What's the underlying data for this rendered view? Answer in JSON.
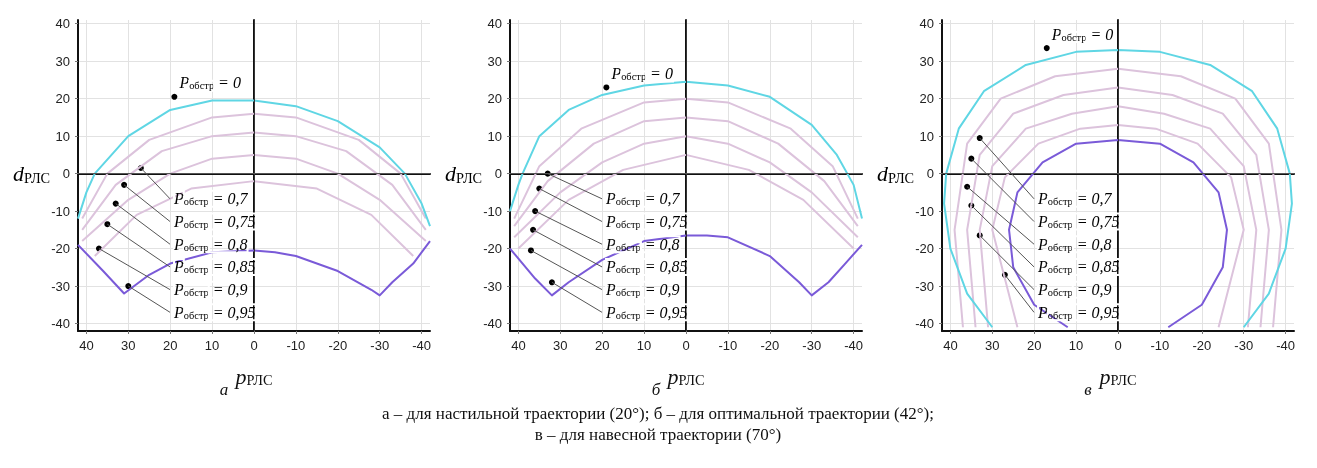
{
  "chart_data": [
    {
      "type": "line",
      "title": "а",
      "xlabel": "p$_{РЛС}$",
      "ylabel": "d$_{РЛС}$",
      "xlim": [
        42,
        -42
      ],
      "ylim": [
        -42,
        41
      ],
      "xticks": [
        40,
        30,
        20,
        10,
        0,
        -10,
        -20,
        -30,
        -40
      ],
      "yticks": [
        -40,
        -30,
        -20,
        -10,
        0,
        10,
        20,
        30,
        40
      ],
      "grid": true,
      "marker": "none",
      "line_style": "solid",
      "ref_lines": [
        {
          "axis": "x",
          "value": 0,
          "color": "#333333"
        },
        {
          "axis": "y",
          "value": 0,
          "color": "#555555"
        }
      ],
      "series": [
        {
          "color": "#dcc3dc",
          "x": [
            41,
            35,
            25,
            10,
            0,
            -10,
            -25,
            -35,
            -41
          ],
          "values": [
            -12,
            0,
            9,
            15,
            16,
            15,
            9,
            0,
            -12
          ]
        },
        {
          "color": "#dcc3dc",
          "x": [
            41,
            33,
            22,
            10,
            0,
            -10,
            -22,
            -33,
            -41
          ],
          "values": [
            -15,
            -3,
            6,
            10,
            11,
            10,
            6,
            -3,
            -15
          ]
        },
        {
          "color": "#dcc3dc",
          "x": [
            41,
            30,
            20,
            10,
            0,
            -10,
            -20,
            -30,
            -41
          ],
          "values": [
            -18,
            -7,
            0,
            4,
            5,
            4,
            0,
            -7,
            -18
          ]
        },
        {
          "color": "#dcc3dc",
          "x": [
            38,
            28,
            15,
            0,
            -15,
            -28,
            -38
          ],
          "values": [
            -22,
            -11,
            -4,
            -2,
            -4,
            -11,
            -22
          ]
        },
        {
          "color": "#5fd6e4",
          "x": [
            42,
            40,
            38,
            30,
            20,
            10,
            0,
            -10,
            -20,
            -30,
            -36,
            -40,
            -42
          ],
          "values": [
            -12,
            -5,
            0,
            10,
            17,
            19.5,
            19.5,
            18,
            14,
            7,
            0,
            -8,
            -14
          ]
        },
        {
          "color": "#7a5ad8",
          "x": [
            42,
            36,
            31,
            25,
            20,
            10,
            0,
            -5,
            -10,
            -20,
            -28,
            -30,
            -33,
            -38,
            -42
          ],
          "values": [
            -19,
            -26,
            -32,
            -27,
            -24,
            -21,
            -20.5,
            -21,
            -22,
            -26,
            -31,
            -32.5,
            -29,
            -24,
            -18
          ]
        }
      ],
      "annotations": [
        {
          "text": "P$_{обстр}$ = 0",
          "x": 19,
          "y": 20.5
        },
        {
          "text": "P$_{обстр}$ = 0,7",
          "x": 27,
          "y": 1.5
        },
        {
          "text": "P$_{обстр}$ = 0,75",
          "x": 31,
          "y": -3
        },
        {
          "text": "P$_{обстр}$ = 0,8",
          "x": 33,
          "y": -8
        },
        {
          "text": "P$_{обстр}$ = 0,85",
          "x": 35,
          "y": -13.5
        },
        {
          "text": "P$_{обстр}$ = 0,9",
          "x": 37,
          "y": -20
        },
        {
          "text": "P$_{обстр}$ = 0,95",
          "x": 30,
          "y": -30
        }
      ]
    },
    {
      "type": "line",
      "title": "б",
      "xlabel": "p$_{РЛС}$",
      "ylabel": "d$_{РЛС}$",
      "xlim": [
        42,
        -42
      ],
      "ylim": [
        -42,
        41
      ],
      "xticks": [
        40,
        30,
        20,
        10,
        0,
        -10,
        -20,
        -30,
        -40
      ],
      "yticks": [
        -40,
        -30,
        -20,
        -10,
        0,
        10,
        20,
        30,
        40
      ],
      "grid": true,
      "marker": "none",
      "line_style": "solid",
      "ref_lines": [
        {
          "axis": "x",
          "value": 0,
          "color": "#333333"
        },
        {
          "axis": "y",
          "value": 0,
          "color": "#555555"
        }
      ],
      "series": [
        {
          "color": "#dcc3dc",
          "x": [
            41,
            35,
            25,
            10,
            0,
            -10,
            -25,
            -35,
            -41
          ],
          "values": [
            -12,
            2,
            12,
            19,
            20,
            19,
            12,
            2,
            -12
          ]
        },
        {
          "color": "#dcc3dc",
          "x": [
            41,
            33,
            22,
            10,
            0,
            -10,
            -22,
            -33,
            -41
          ],
          "values": [
            -14,
            -2,
            8,
            14,
            15,
            14,
            8,
            -2,
            -14
          ]
        },
        {
          "color": "#dcc3dc",
          "x": [
            41,
            30,
            20,
            10,
            0,
            -10,
            -20,
            -30,
            -41
          ],
          "values": [
            -17,
            -5,
            3,
            8,
            10,
            8,
            3,
            -5,
            -17
          ]
        },
        {
          "color": "#dcc3dc",
          "x": [
            40,
            28,
            15,
            0,
            -15,
            -28,
            -40
          ],
          "values": [
            -20,
            -7,
            1,
            5,
            1,
            -7,
            -20
          ]
        },
        {
          "color": "#5fd6e4",
          "x": [
            42,
            40,
            39,
            35,
            28,
            20,
            10,
            0,
            -10,
            -20,
            -30,
            -36,
            -40,
            -42
          ],
          "values": [
            -10,
            -3,
            0,
            10,
            17,
            21,
            23.5,
            24.5,
            23.5,
            20.5,
            13,
            5,
            -3,
            -12
          ]
        },
        {
          "color": "#7a5ad8",
          "x": [
            42,
            36,
            32,
            28,
            20,
            10,
            0,
            -5,
            -10,
            -20,
            -27,
            -30,
            -34,
            -38,
            -42
          ],
          "values": [
            -20,
            -28,
            -32.5,
            -29,
            -23,
            -18,
            -16.5,
            -16.5,
            -17,
            -22,
            -29,
            -32.5,
            -29,
            -24,
            -19
          ]
        }
      ],
      "annotations": [
        {
          "text": "P$_{обстр}$ = 0",
          "x": 19,
          "y": 23
        },
        {
          "text": "P$_{обстр}$ = 0,7",
          "x": 33,
          "y": 0
        },
        {
          "text": "P$_{обстр}$ = 0,75",
          "x": 35,
          "y": -4
        },
        {
          "text": "P$_{обстр}$ = 0,8",
          "x": 36,
          "y": -10
        },
        {
          "text": "P$_{обстр}$ = 0,85",
          "x": 36.5,
          "y": -15
        },
        {
          "text": "P$_{обстр}$ = 0,9",
          "x": 37,
          "y": -20.5
        },
        {
          "text": "P$_{обстр}$ = 0,95",
          "x": 32,
          "y": -29
        }
      ]
    },
    {
      "type": "line",
      "title": "в",
      "xlabel": "p$_{РЛС}$",
      "ylabel": "d$_{РЛС}$",
      "xlim": [
        42,
        -42
      ],
      "ylim": [
        -42,
        41
      ],
      "xticks": [
        40,
        30,
        20,
        10,
        0,
        -10,
        -20,
        -30,
        -40
      ],
      "yticks": [
        -40,
        -30,
        -20,
        -10,
        0,
        10,
        20,
        30,
        40
      ],
      "grid": true,
      "marker": "none",
      "line_style": "solid",
      "ref_lines": [
        {
          "axis": "x",
          "value": 0,
          "color": "#333333"
        },
        {
          "axis": "y",
          "value": 0,
          "color": "#555555"
        }
      ],
      "series": [
        {
          "color": "#dcc3dc",
          "x": [
            37,
            39,
            36,
            28,
            15,
            0,
            -15,
            -28,
            -36,
            -39,
            -37
          ],
          "values": [
            -41,
            -15,
            8,
            20,
            26,
            28,
            26,
            20,
            8,
            -15,
            -41
          ]
        },
        {
          "color": "#dcc3dc",
          "x": [
            34,
            36,
            33,
            25,
            13,
            0,
            -13,
            -25,
            -33,
            -36,
            -34
          ],
          "values": [
            -41,
            -15,
            5,
            16,
            21,
            23,
            21,
            16,
            5,
            -15,
            -41
          ]
        },
        {
          "color": "#dcc3dc",
          "x": [
            31,
            33,
            30,
            22,
            11,
            0,
            -11,
            -22,
            -30,
            -33,
            -31
          ],
          "values": [
            -41,
            -15,
            2,
            12,
            16,
            18,
            16,
            12,
            2,
            -15,
            -41
          ]
        },
        {
          "color": "#dcc3dc",
          "x": [
            24,
            30,
            27,
            19,
            9,
            0,
            -9,
            -19,
            -27,
            -30,
            -24
          ],
          "values": [
            -41,
            -15,
            -1,
            8,
            12,
            13,
            12,
            8,
            -1,
            -15,
            -41
          ]
        },
        {
          "color": "#5fd6e4",
          "x": [
            30,
            36,
            40,
            41.5,
            41,
            38,
            32,
            22,
            10,
            0,
            -10,
            -22,
            -32,
            -38,
            -41,
            -41.5,
            -40,
            -36,
            -30
          ],
          "values": [
            -41,
            -32,
            -20,
            -8,
            0,
            12,
            22,
            29,
            32.5,
            33,
            32.5,
            29,
            22,
            12,
            0,
            -8,
            -20,
            -32,
            -41
          ]
        },
        {
          "color": "#7a5ad8",
          "x": [
            12,
            20,
            25,
            26,
            24,
            18,
            10,
            0,
            -10,
            -18,
            -24,
            -26,
            -25,
            -20,
            -12
          ],
          "values": [
            -41,
            -35,
            -25,
            -15,
            -5,
            3,
            8,
            9,
            8,
            3,
            -5,
            -15,
            -25,
            -35,
            -41
          ]
        }
      ],
      "annotations": [
        {
          "text": "P$_{обстр}$ = 0",
          "x": 17,
          "y": 33.5
        },
        {
          "text": "P$_{обстр}$ = 0,7",
          "x": 33,
          "y": 9.5
        },
        {
          "text": "P$_{обстр}$ = 0,75",
          "x": 35,
          "y": 4
        },
        {
          "text": "P$_{обстр}$ = 0,8",
          "x": 36,
          "y": -3.5
        },
        {
          "text": "P$_{обстр}$ = 0,85",
          "x": 35,
          "y": -8.5
        },
        {
          "text": "P$_{обстр}$ = 0,9",
          "x": 33,
          "y": -16.5
        },
        {
          "text": "P$_{обстр}$ = 0,95",
          "x": 27,
          "y": -27
        },
        "а – для настильной траектории (20°); б – для оптимальной траектории (42°);",
        "в – для навесной траектории (70°)"
      ]
    }
  ]
}
